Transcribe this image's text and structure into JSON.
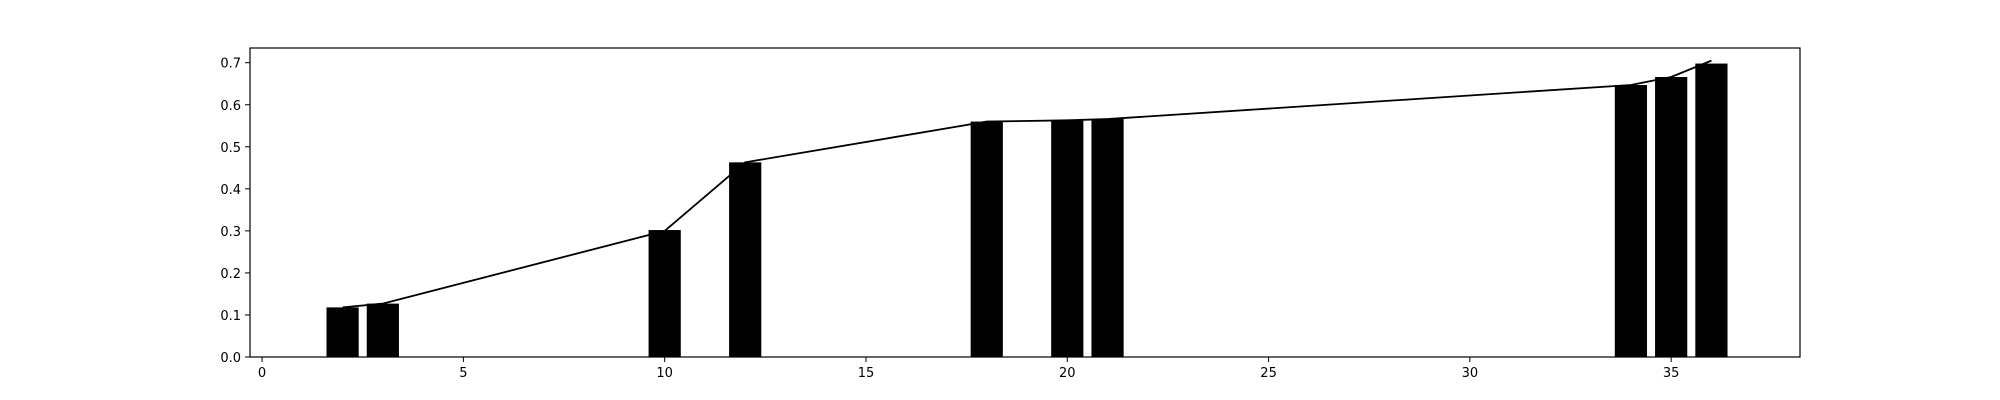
{
  "chart_data": {
    "type": "bar",
    "title": "",
    "xlabel": "",
    "ylabel": "",
    "xlim": [
      -0.3,
      38.2
    ],
    "ylim": [
      0.0,
      0.735
    ],
    "bar_width": 0.8,
    "grid": false,
    "x_ticks": [
      0,
      5,
      10,
      15,
      20,
      25,
      30,
      35
    ],
    "y_ticks": [
      0.0,
      0.1,
      0.2,
      0.3,
      0.4,
      0.5,
      0.6,
      0.7
    ],
    "bar_color": "#000000",
    "line_color": "#000000",
    "x": [
      2,
      3,
      10,
      12,
      18,
      20,
      21,
      34,
      35,
      36
    ],
    "bars": [
      0.118,
      0.127,
      0.302,
      0.463,
      0.56,
      0.563,
      0.566,
      0.647,
      0.666,
      0.698
    ],
    "line": [
      0.118,
      0.127,
      0.3,
      0.463,
      0.56,
      0.563,
      0.566,
      0.647,
      0.666,
      0.705
    ]
  }
}
